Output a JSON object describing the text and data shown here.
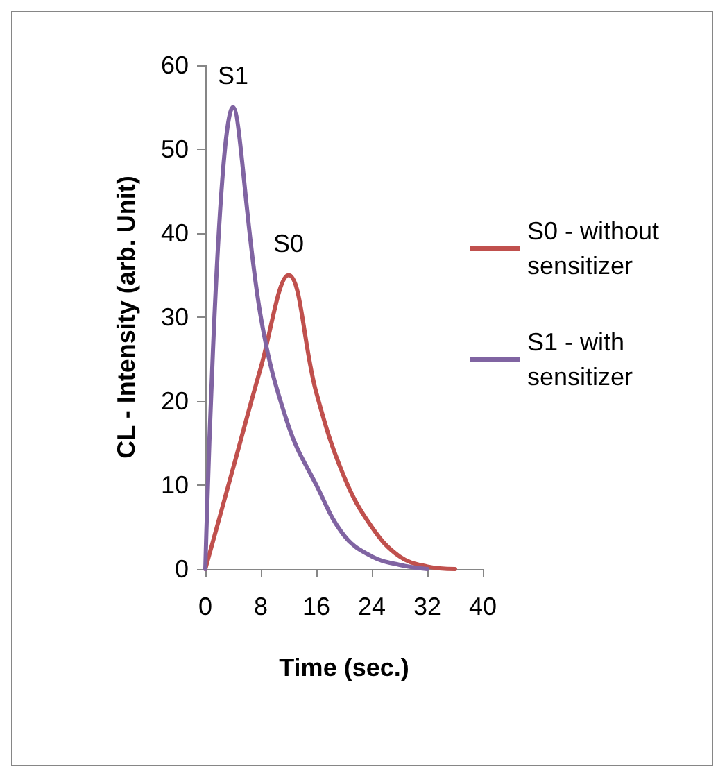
{
  "chart_data": {
    "type": "line",
    "xlabel": "Time (sec.)",
    "ylabel": "CL - Intensity (arb. Unit)",
    "x": [
      0,
      4,
      8,
      12,
      16,
      20,
      24,
      28,
      32,
      36
    ],
    "series": [
      {
        "name": "S0 - without sensitizer",
        "color": "#c0504d",
        "values": [
          0,
          12,
          24,
          35,
          21,
          11,
          5,
          1.5,
          0.3,
          0
        ]
      },
      {
        "name": "S1 - with sensitizer",
        "color": "#8064a2",
        "values": [
          0,
          55,
          30,
          17,
          10,
          4,
          1.5,
          0.5,
          0,
          null
        ]
      }
    ],
    "annotations": [
      "S1",
      "S0"
    ],
    "xlim": [
      0,
      40
    ],
    "xticks": [
      0,
      8,
      16,
      24,
      32,
      40
    ],
    "ylim": [
      0,
      60
    ],
    "yticks": [
      0,
      10,
      20,
      30,
      40,
      50,
      60
    ],
    "grid": false,
    "legend": "right",
    "marker": "none",
    "line_style": "solid"
  }
}
